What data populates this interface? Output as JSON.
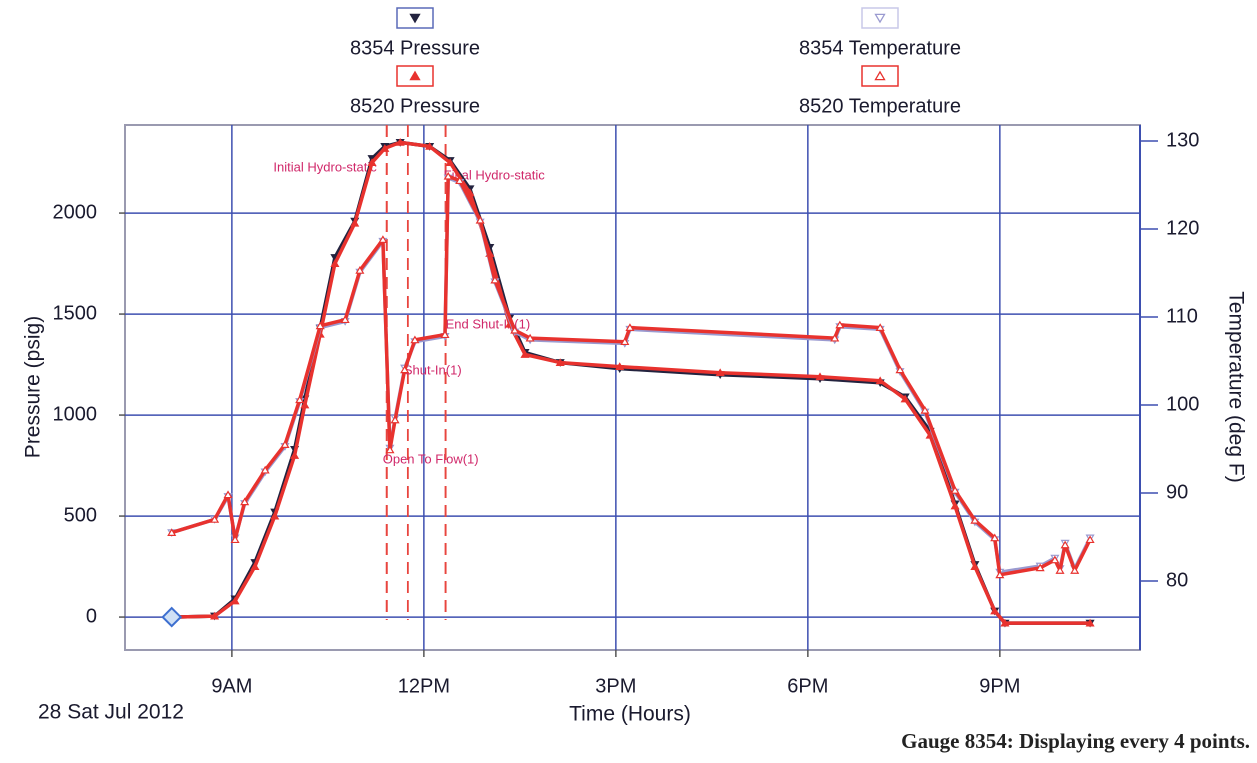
{
  "chart_data": {
    "type": "line",
    "date_label": "28 Sat Jul 2012",
    "x_label": "Time (Hours)",
    "y_label": "Pressure (psig)",
    "y2_label": "Temperature (deg F)",
    "footnote": "Gauge 8354: Displaying every 4 points.",
    "xlim": [
      7.33,
      23.19
    ],
    "xticks": [
      {
        "value": 9,
        "label": "9AM"
      },
      {
        "value": 12,
        "label": "12PM"
      },
      {
        "value": 15,
        "label": "3PM"
      },
      {
        "value": 18,
        "label": "6PM"
      },
      {
        "value": 21,
        "label": "9PM"
      }
    ],
    "ylim": [
      -163,
      2436
    ],
    "yticks": [
      0,
      500,
      1000,
      1500,
      2000
    ],
    "y2lim": [
      72.16,
      131.82
    ],
    "y2ticks": [
      80,
      90,
      100,
      110,
      120,
      130
    ],
    "grid": true,
    "series": [
      {
        "name": "8354 Pressure",
        "color": "#23233f",
        "marker": "down-filled",
        "x": [
          8.06,
          8.73,
          9.05,
          9.36,
          9.67,
          9.98,
          10.14,
          10.38,
          10.61,
          10.92,
          11.19,
          11.39,
          11.63,
          12.09,
          12.41,
          12.72,
          13.03,
          13.34,
          13.58,
          14.13,
          15.06,
          16.63,
          18.19,
          19.13,
          19.52,
          19.91,
          20.3,
          20.61,
          20.92,
          21.08,
          22.41
        ],
        "values": [
          0,
          5,
          90,
          270,
          520,
          830,
          1080,
          1430,
          1780,
          1960,
          2270,
          2330,
          2350,
          2330,
          2260,
          2120,
          1830,
          1480,
          1310,
          1260,
          1230,
          1200,
          1180,
          1160,
          1090,
          920,
          560,
          260,
          30,
          -30,
          -30
        ]
      },
      {
        "name": "8520 Pressure",
        "color": "#e8322e",
        "marker": "up-filled",
        "x": [
          8.06,
          8.73,
          9.05,
          9.36,
          9.67,
          9.98,
          10.14,
          10.38,
          10.61,
          10.92,
          11.19,
          11.39,
          11.63,
          12.09,
          12.41,
          12.72,
          13.03,
          13.34,
          13.58,
          14.13,
          15.06,
          16.63,
          18.19,
          19.13,
          19.52,
          19.91,
          20.3,
          20.61,
          20.92,
          21.08,
          22.41
        ],
        "values": [
          0,
          5,
          80,
          250,
          500,
          800,
          1050,
          1400,
          1750,
          1950,
          2250,
          2320,
          2350,
          2330,
          2250,
          2100,
          1800,
          1450,
          1300,
          1260,
          1240,
          1210,
          1190,
          1170,
          1080,
          900,
          550,
          250,
          30,
          -30,
          -30
        ]
      },
      {
        "name": "8354 Temperature",
        "color": "#9a9ad0",
        "marker": "down-hollow",
        "axis": "y2",
        "x": [
          8.06,
          8.73,
          8.94,
          9.05,
          9.2,
          9.52,
          9.83,
          10.06,
          10.38,
          10.77,
          11.0,
          11.36,
          11.47,
          11.55,
          11.7,
          11.86,
          12.33,
          12.38,
          12.56,
          12.88,
          13.11,
          13.42,
          13.66,
          15.14,
          15.22,
          18.42,
          18.5,
          19.13,
          19.44,
          19.83,
          20.3,
          20.61,
          20.92,
          21.0,
          21.63,
          21.86,
          21.94,
          22.02,
          22.17,
          22.41
        ],
        "values": [
          85.5,
          87,
          89.6,
          84.9,
          88.8,
          92.4,
          95.3,
          100.4,
          108.8,
          109.5,
          115.1,
          118.6,
          95.1,
          98.5,
          104.2,
          107.2,
          107.8,
          125.8,
          125.3,
          120.8,
          114,
          108.3,
          107.4,
          107,
          108.6,
          107.4,
          108.9,
          108.6,
          103.8,
          99.2,
          90.1,
          86.7,
          84.7,
          81,
          81.7,
          82.6,
          81.4,
          84.3,
          81.4,
          84.9
        ]
      },
      {
        "name": "8520 Temperature",
        "color": "#e8322e",
        "marker": "up-hollow",
        "axis": "y2",
        "x": [
          8.06,
          8.73,
          8.94,
          9.05,
          9.2,
          9.52,
          9.83,
          10.06,
          10.38,
          10.77,
          11.0,
          11.36,
          11.47,
          11.55,
          11.7,
          11.86,
          12.33,
          12.38,
          12.56,
          12.88,
          13.11,
          13.42,
          13.66,
          15.14,
          15.22,
          18.42,
          18.5,
          19.13,
          19.44,
          19.83,
          20.3,
          20.61,
          20.92,
          21.0,
          21.63,
          21.86,
          21.94,
          22.02,
          22.17,
          22.41
        ],
        "values": [
          85.5,
          87,
          89.8,
          84.7,
          89,
          92.6,
          95.5,
          100.6,
          109,
          109.7,
          115.3,
          118.8,
          94.9,
          98.3,
          104,
          107.4,
          108,
          126,
          125.5,
          121,
          114.2,
          108.5,
          107.6,
          107.2,
          108.8,
          107.6,
          109.1,
          108.8,
          104,
          99.4,
          90.3,
          86.9,
          84.9,
          80.7,
          81.5,
          82.4,
          81.2,
          84.1,
          81.2,
          84.7
        ]
      }
    ],
    "events": [
      {
        "label": "Initial Hydro-static",
        "x": 11.42
      },
      {
        "label": "Open To Flow(1)",
        "x": 11.42
      },
      {
        "label": "Shut-In(1)",
        "x": 11.75
      },
      {
        "label": "End Shut-In(1)",
        "x": 12.34
      },
      {
        "label": "Final Hydro-static",
        "x": 12.34
      }
    ]
  }
}
